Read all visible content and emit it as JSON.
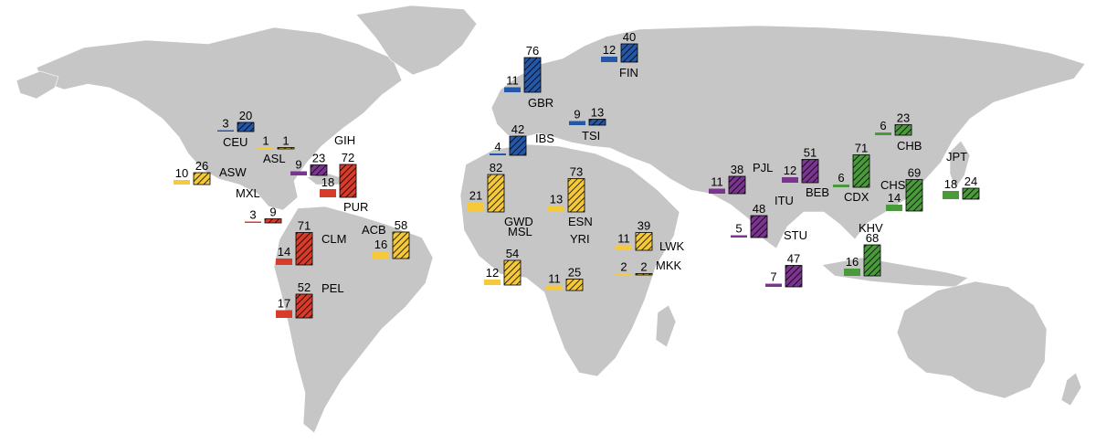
{
  "colors": {
    "European": "#2457a8",
    "American": "#d93b2b",
    "African": "#f5c93a",
    "South Asian": "#7b3590",
    "East Asian": "#4a9a3c",
    "land": "#c6c6c6"
  },
  "chart_data": {
    "type": "bar",
    "title": "",
    "legend": "none",
    "grid": false,
    "series": [
      {
        "key": "solid",
        "style": "solid"
      },
      {
        "key": "hatched",
        "style": "hatched"
      }
    ],
    "populations": [
      {
        "code": "CEU",
        "group": "European",
        "solid": 3,
        "hatched": 20
      },
      {
        "code": "GBR",
        "group": "European",
        "solid": 11,
        "hatched": 76
      },
      {
        "code": "FIN",
        "group": "European",
        "solid": 12,
        "hatched": 40
      },
      {
        "code": "IBS",
        "group": "European",
        "solid": 4,
        "hatched": 42
      },
      {
        "code": "TSI",
        "group": "European",
        "solid": 9,
        "hatched": 13
      },
      {
        "code": "ASL",
        "group": "African",
        "solid": 1,
        "hatched": 1
      },
      {
        "code": "ASW",
        "group": "African",
        "solid": 10,
        "hatched": 26
      },
      {
        "code": "GIH",
        "group": "South Asian",
        "solid": 9,
        "hatched": 23
      },
      {
        "code": "MXL",
        "group": "American",
        "solid": 3,
        "hatched": 9
      },
      {
        "code": "PUR",
        "group": "American",
        "solid": 18,
        "hatched": 72
      },
      {
        "code": "CLM",
        "group": "American",
        "solid": 14,
        "hatched": 71
      },
      {
        "code": "PEL",
        "group": "American",
        "solid": 17,
        "hatched": 52
      },
      {
        "code": "ACB",
        "group": "African",
        "solid": 16,
        "hatched": 58
      },
      {
        "code": "GWD",
        "group": "African",
        "solid": 21,
        "hatched": 82
      },
      {
        "code": "MSL",
        "group": "African",
        "solid": 12,
        "hatched": 54
      },
      {
        "code": "ESN",
        "group": "African",
        "solid": 13,
        "hatched": 73
      },
      {
        "code": "YRI",
        "group": "African",
        "solid": 11,
        "hatched": 25
      },
      {
        "code": "LWK",
        "group": "African",
        "solid": 11,
        "hatched": 39
      },
      {
        "code": "MKK",
        "group": "African",
        "solid": 2,
        "hatched": 2
      },
      {
        "code": "PJL",
        "group": "South Asian",
        "solid": 11,
        "hatched": 38
      },
      {
        "code": "ITU",
        "group": "South Asian",
        "solid": 5,
        "hatched": 48
      },
      {
        "code": "STU",
        "group": "South Asian",
        "solid": 7,
        "hatched": 47
      },
      {
        "code": "BEB",
        "group": "South Asian",
        "solid": 12,
        "hatched": 51
      },
      {
        "code": "CHB",
        "group": "East Asian",
        "solid": 6,
        "hatched": 23
      },
      {
        "code": "CDX",
        "group": "East Asian",
        "solid": 6,
        "hatched": 71
      },
      {
        "code": "CHS",
        "group": "East Asian",
        "solid": 14,
        "hatched": 69
      },
      {
        "code": "JPT",
        "group": "East Asian",
        "solid": 18,
        "hatched": 24
      },
      {
        "code": "KHV",
        "group": "East Asian",
        "solid": 16,
        "hatched": 68
      }
    ]
  }
}
